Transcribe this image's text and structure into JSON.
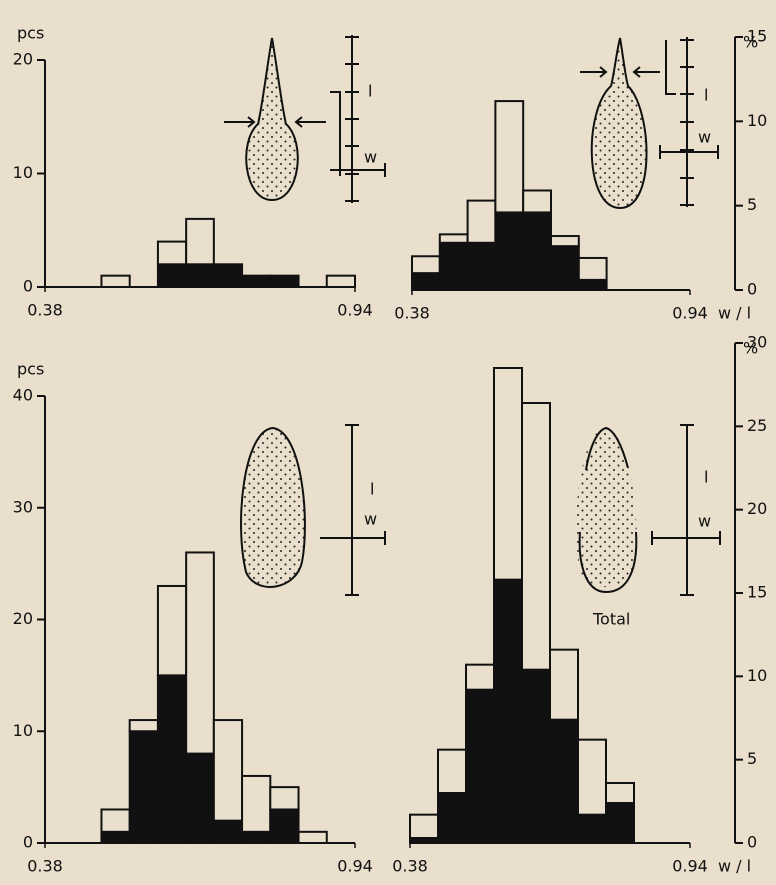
{
  "chart_data": [
    {
      "type": "histogram",
      "y_label": "pcs",
      "y_axis": "left",
      "bins": [
        0.38,
        0.431,
        0.482,
        0.533,
        0.584,
        0.635,
        0.685,
        0.736,
        0.787,
        0.838,
        0.889,
        0.94
      ],
      "series": [
        {
          "color": "#111111",
          "values": [
            0,
            0,
            0,
            0,
            2,
            2,
            2,
            1,
            1,
            0,
            0
          ]
        },
        {
          "color": "#e9dfcc",
          "values": [
            0,
            0,
            1,
            0,
            2,
            4,
            0,
            0,
            0,
            0,
            1
          ]
        }
      ],
      "xlim": [
        0.38,
        0.94
      ],
      "xticks": [
        0.38,
        0.94
      ],
      "ylim": [
        0,
        20
      ],
      "yticks": [
        0,
        10,
        20
      ],
      "inset_labels": [
        "l",
        "w"
      ]
    },
    {
      "type": "histogram",
      "y_label": "%",
      "y_axis": "right",
      "x_label": "w / l",
      "bins": [
        0.38,
        0.436,
        0.492,
        0.548,
        0.604,
        0.66,
        0.716,
        0.772,
        0.828,
        0.884,
        0.94
      ],
      "series": [
        {
          "color": "#111111",
          "values": [
            1,
            2.8,
            2.8,
            4.6,
            4.6,
            2.6,
            0.6,
            0,
            0,
            0
          ]
        },
        {
          "color": "#e9dfcc",
          "values": [
            1,
            0.5,
            2.5,
            6.6,
            1.3,
            0.6,
            1.3,
            0,
            0,
            0
          ]
        }
      ],
      "xlim": [
        0.38,
        0.94
      ],
      "xticks": [
        0.38,
        0.94
      ],
      "ylim": [
        0,
        15
      ],
      "yticks": [
        0,
        5,
        10,
        15
      ],
      "inset_labels": [
        "l",
        "w"
      ]
    },
    {
      "type": "histogram",
      "y_label": "pcs",
      "y_axis": "left",
      "bins": [
        0.38,
        0.431,
        0.482,
        0.533,
        0.584,
        0.635,
        0.685,
        0.736,
        0.787,
        0.838,
        0.889,
        0.94
      ],
      "series": [
        {
          "color": "#111111",
          "values": [
            0,
            0,
            1,
            10,
            15,
            8,
            2,
            1,
            3,
            0,
            0
          ]
        },
        {
          "color": "#e9dfcc",
          "values": [
            0,
            0,
            2,
            1,
            8,
            18,
            9,
            5,
            2,
            1,
            0
          ]
        }
      ],
      "xlim": [
        0.38,
        0.94
      ],
      "xticks": [
        0.38,
        0.94
      ],
      "ylim": [
        0,
        40
      ],
      "yticks": [
        0,
        10,
        20,
        30,
        40
      ],
      "inset_labels": [
        "l",
        "w"
      ]
    },
    {
      "type": "histogram",
      "y_label": "%",
      "y_axis": "right",
      "x_label": "w / l",
      "annotation": "Total",
      "bins": [
        0.38,
        0.436,
        0.492,
        0.548,
        0.604,
        0.66,
        0.716,
        0.772,
        0.828,
        0.884,
        0.94
      ],
      "series": [
        {
          "color": "#111111",
          "values": [
            0.3,
            3,
            9.2,
            15.8,
            10.4,
            7.4,
            1.7,
            2.4,
            0,
            0
          ]
        },
        {
          "color": "#e9dfcc",
          "values": [
            1.4,
            2.6,
            1.5,
            12.7,
            16,
            4.2,
            4.5,
            1.2,
            0,
            0
          ]
        }
      ],
      "xlim": [
        0.38,
        0.94
      ],
      "xticks": [
        0.38,
        0.94
      ],
      "ylim": [
        0,
        30
      ],
      "yticks": [
        0,
        5,
        10,
        15,
        20,
        25,
        30
      ],
      "inset_labels": [
        "l",
        "w"
      ]
    }
  ]
}
